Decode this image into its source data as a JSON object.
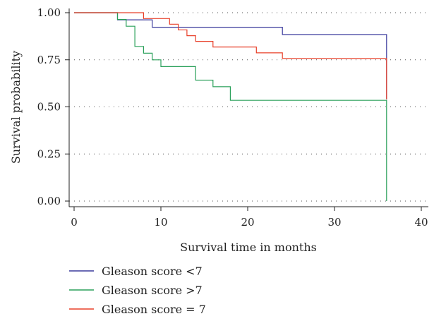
{
  "chart_data": {
    "type": "line",
    "subtype": "kaplan-meier step",
    "title": "",
    "xlabel": "Survival time in months",
    "ylabel": "Survival probability",
    "xlim": [
      0,
      40
    ],
    "ylim": [
      0,
      1
    ],
    "x_ticks": [
      "0",
      "10",
      "20",
      "30",
      "40"
    ],
    "y_ticks": [
      "0.00",
      "0.25",
      "0.50",
      "0.75",
      "1.00"
    ],
    "grid": "horizontal dotted",
    "legend_position": "bottom-left",
    "series": [
      {
        "name": "Gleason score <7",
        "color": "#3a3a9c",
        "points": [
          [
            0,
            1.0
          ],
          [
            5,
            1.0
          ],
          [
            5,
            0.962
          ],
          [
            9,
            0.962
          ],
          [
            9,
            0.923
          ],
          [
            24,
            0.923
          ],
          [
            24,
            0.884
          ],
          [
            36,
            0.884
          ],
          [
            36,
            0.54
          ]
        ]
      },
      {
        "name": "Gleason score >7",
        "color": "#2aa05a",
        "points": [
          [
            0,
            1.0
          ],
          [
            5,
            1.0
          ],
          [
            5,
            0.964
          ],
          [
            6,
            0.964
          ],
          [
            6,
            0.928
          ],
          [
            7,
            0.928
          ],
          [
            7,
            0.821
          ],
          [
            8,
            0.821
          ],
          [
            8,
            0.785
          ],
          [
            9,
            0.785
          ],
          [
            9,
            0.75
          ],
          [
            10,
            0.75
          ],
          [
            10,
            0.714
          ],
          [
            14,
            0.714
          ],
          [
            14,
            0.642
          ],
          [
            16,
            0.642
          ],
          [
            16,
            0.607
          ],
          [
            18,
            0.607
          ],
          [
            18,
            0.535
          ],
          [
            36,
            0.535
          ],
          [
            36,
            0.0
          ]
        ]
      },
      {
        "name": "Gleason score = 7",
        "color": "#e8402a",
        "points": [
          [
            0,
            1.0
          ],
          [
            8,
            1.0
          ],
          [
            8,
            0.969
          ],
          [
            11,
            0.969
          ],
          [
            11,
            0.939
          ],
          [
            12,
            0.939
          ],
          [
            12,
            0.909
          ],
          [
            13,
            0.909
          ],
          [
            13,
            0.878
          ],
          [
            14,
            0.878
          ],
          [
            14,
            0.848
          ],
          [
            16,
            0.848
          ],
          [
            16,
            0.818
          ],
          [
            21,
            0.818
          ],
          [
            21,
            0.787
          ],
          [
            24,
            0.787
          ],
          [
            24,
            0.757
          ],
          [
            36,
            0.757
          ],
          [
            36,
            0.54
          ]
        ]
      }
    ]
  }
}
